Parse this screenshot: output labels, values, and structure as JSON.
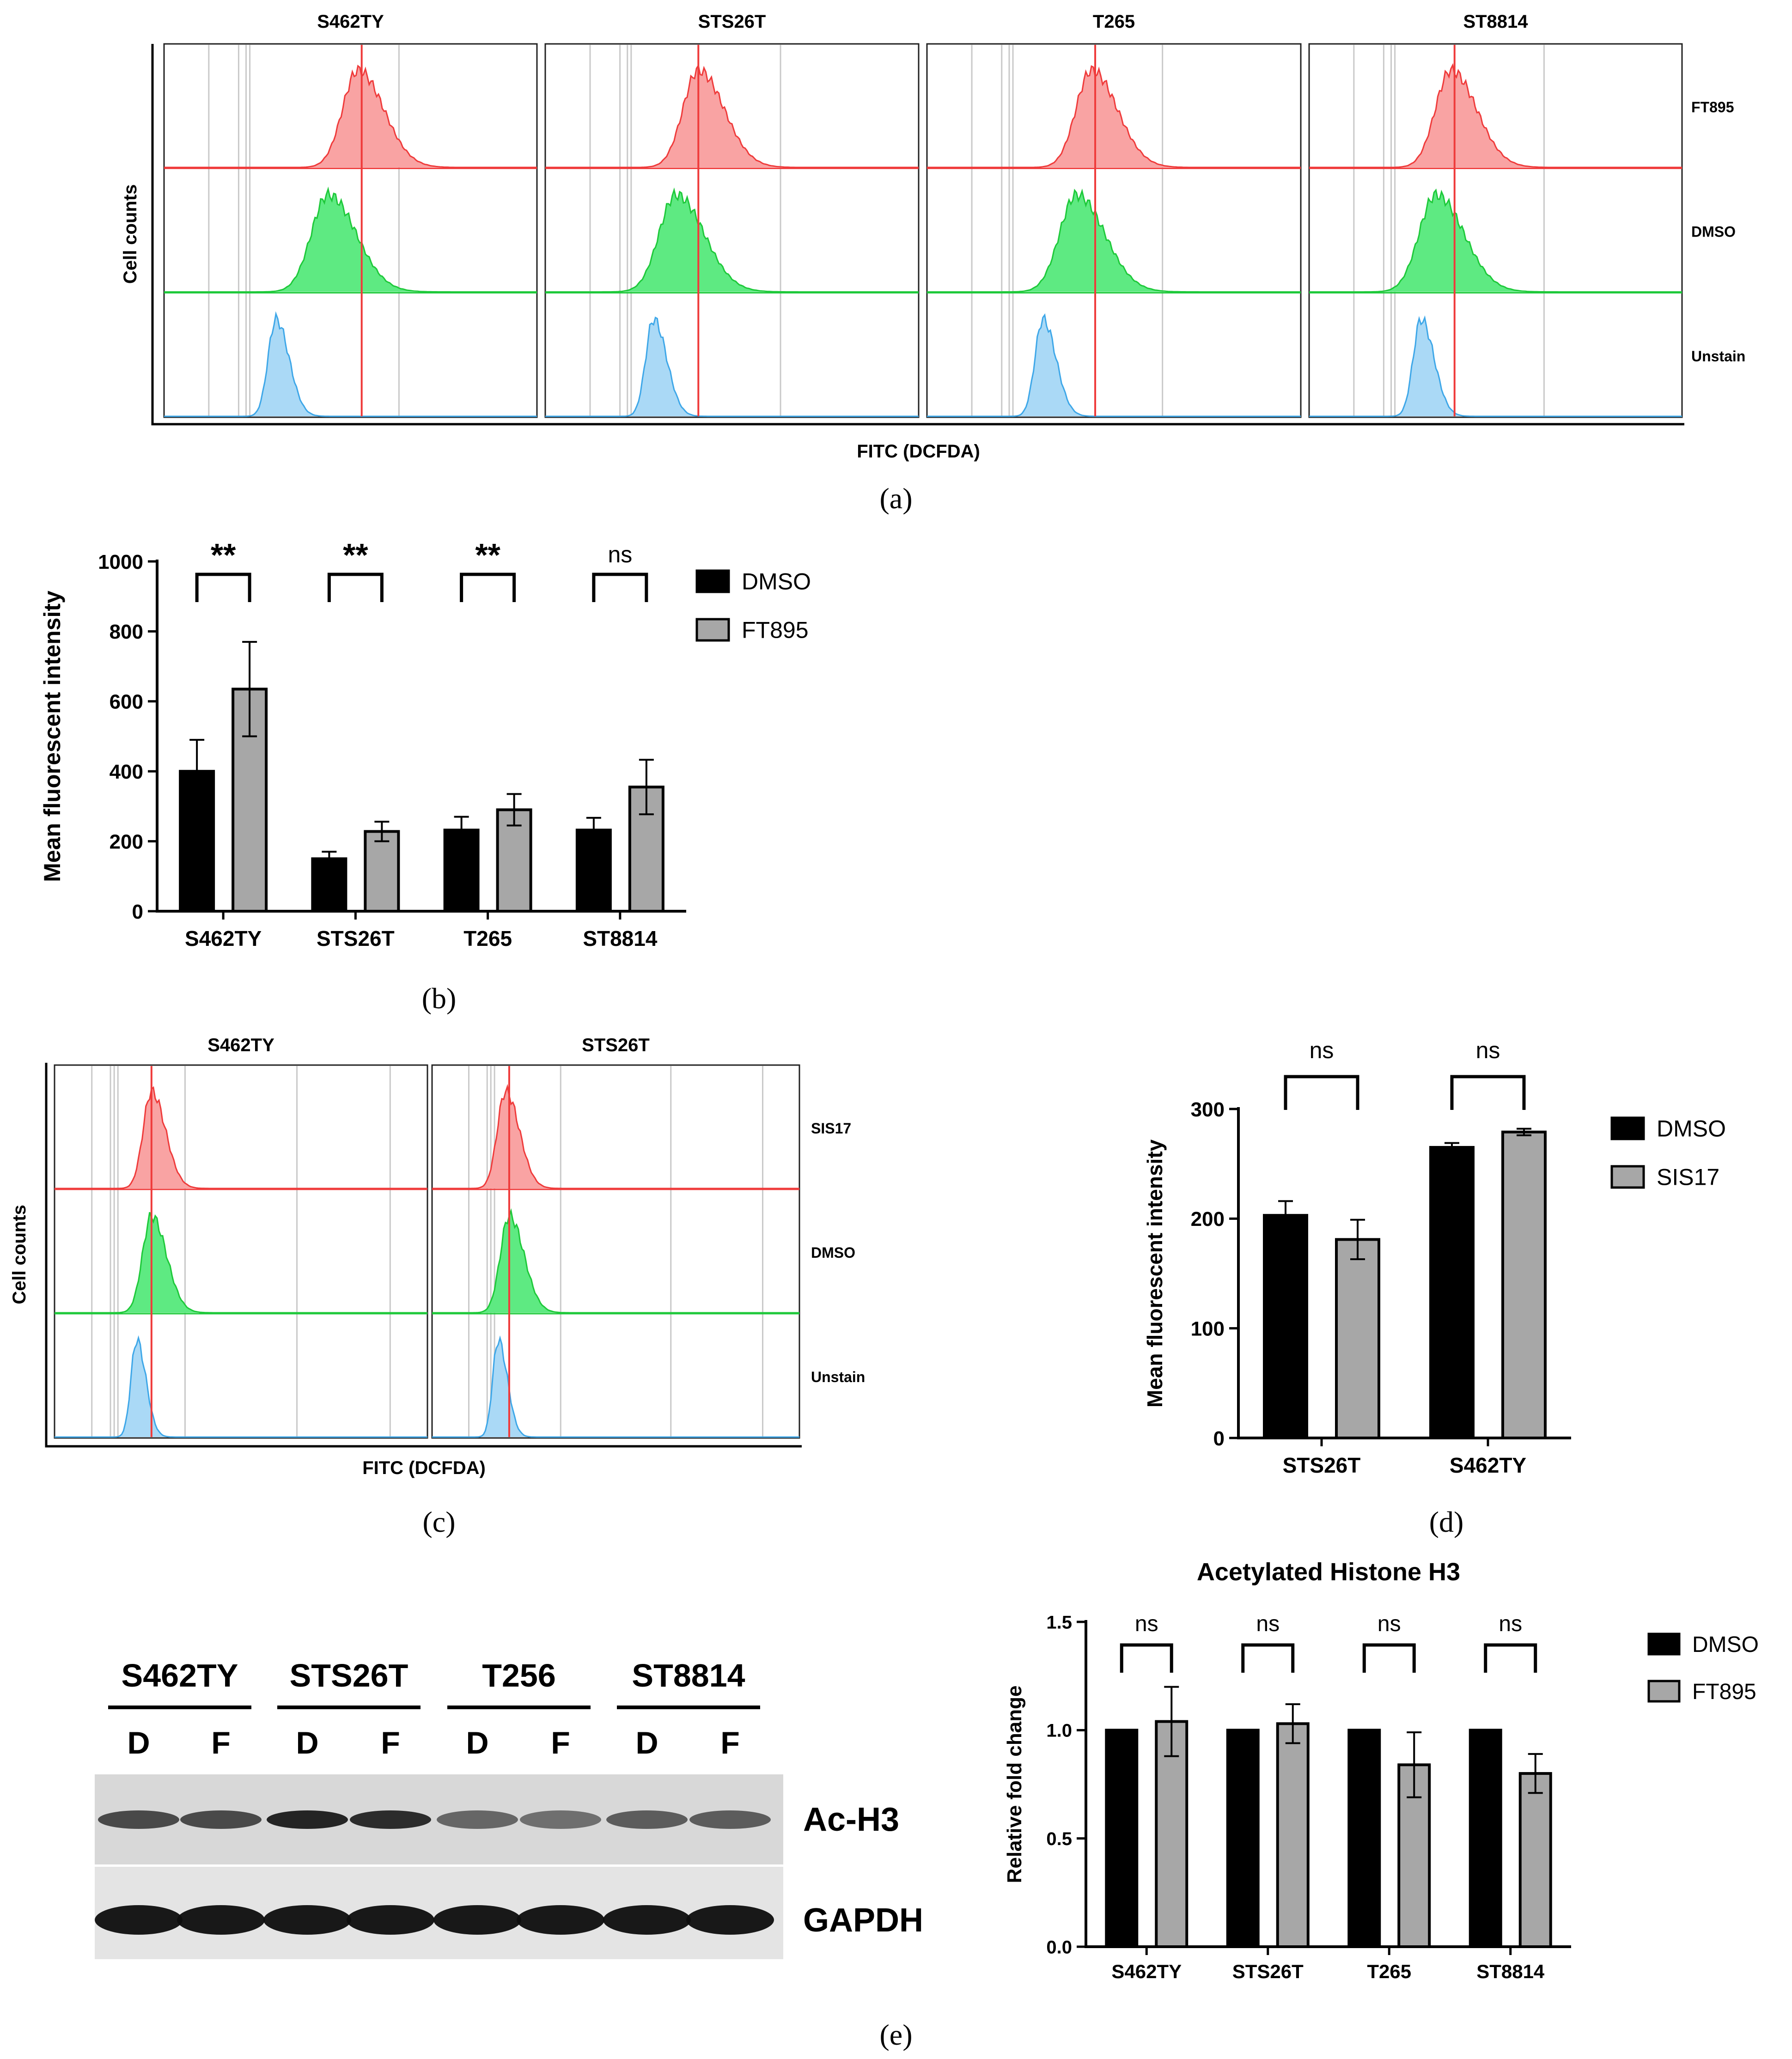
{
  "panel_labels": {
    "a": "(a)",
    "b": "(b)",
    "c": "(c)",
    "d": "(d)",
    "e": "(e)"
  },
  "colors": {
    "red": "#ef3b3b",
    "red_fill": "#f9a3a3",
    "green": "#1ec93a",
    "green_fill": "#5eea82",
    "blue": "#3ea7e8",
    "blue_fill": "#aad9f6",
    "dmso_bar": "#000000",
    "treat_bar": "#a7a7a7"
  },
  "panel_a": {
    "y_title": "Cell counts",
    "x_title": "FITC (DCFDA)",
    "cells": [
      "S462TY",
      "STS26T",
      "T265",
      "ST8814"
    ],
    "conditions": [
      "FT895",
      "DMSO",
      "Unstain"
    ]
  },
  "panel_c": {
    "y_title": "Cell counts",
    "x_title": "FITC (DCFDA)",
    "cells": [
      "S462TY",
      "STS26T"
    ],
    "conditions": [
      "SIS17",
      "DMSO",
      "Unstain"
    ]
  },
  "panel_e_blot": {
    "cells": [
      "S462TY",
      "STS26T",
      "T256",
      "ST8814"
    ],
    "lanes": [
      "D",
      "F",
      "D",
      "F",
      "D",
      "F",
      "D",
      "F"
    ],
    "rows": [
      "Ac-H3",
      "GAPDH"
    ]
  },
  "chart_data": [
    {
      "id": "b",
      "type": "bar",
      "categories": [
        "S462TY",
        "STS26T",
        "T265",
        "ST8814"
      ],
      "series": [
        {
          "name": "DMSO",
          "values": [
            400,
            150,
            232,
            232
          ],
          "errors": [
            90,
            20,
            38,
            35
          ]
        },
        {
          "name": "FT895",
          "values": [
            635,
            228,
            290,
            355
          ],
          "errors": [
            135,
            28,
            45,
            78
          ]
        }
      ],
      "significance": [
        "**",
        "**",
        "**",
        "ns"
      ],
      "ylabel": "Mean fluorescent intensity",
      "xlabel": "",
      "ylim": [
        0,
        1000
      ],
      "yticks": [
        0,
        200,
        400,
        600,
        800,
        1000
      ],
      "legend": "top-right"
    },
    {
      "id": "d",
      "type": "bar",
      "categories": [
        "STS26T",
        "S462TY"
      ],
      "series": [
        {
          "name": "DMSO",
          "values": [
            203,
            265
          ],
          "errors": [
            13,
            4
          ]
        },
        {
          "name": "SIS17",
          "values": [
            181,
            279
          ],
          "errors": [
            18,
            3
          ]
        }
      ],
      "significance": [
        "ns",
        "ns"
      ],
      "ylabel": "Mean fluorescent intensity",
      "xlabel": "",
      "ylim": [
        0,
        300
      ],
      "yticks": [
        0,
        100,
        200,
        300
      ],
      "legend": "top-right"
    },
    {
      "id": "e",
      "type": "bar",
      "title": "Acetylated Histone H3",
      "categories": [
        "S462TY",
        "STS26T",
        "T265",
        "ST8814"
      ],
      "series": [
        {
          "name": "DMSO",
          "values": [
            1.0,
            1.0,
            1.0,
            1.0
          ],
          "errors": [
            0,
            0,
            0,
            0
          ]
        },
        {
          "name": "FT895",
          "values": [
            1.04,
            1.03,
            0.84,
            0.8
          ],
          "errors": [
            0.16,
            0.09,
            0.15,
            0.09
          ]
        }
      ],
      "significance": [
        "ns",
        "ns",
        "ns",
        "ns"
      ],
      "ylabel": "Relative fold change",
      "xlabel": "",
      "ylim": [
        0,
        1.5
      ],
      "yticks": [
        "0.0",
        "0.5",
        "1.0",
        "1.5"
      ],
      "legend": "top-right"
    }
  ]
}
